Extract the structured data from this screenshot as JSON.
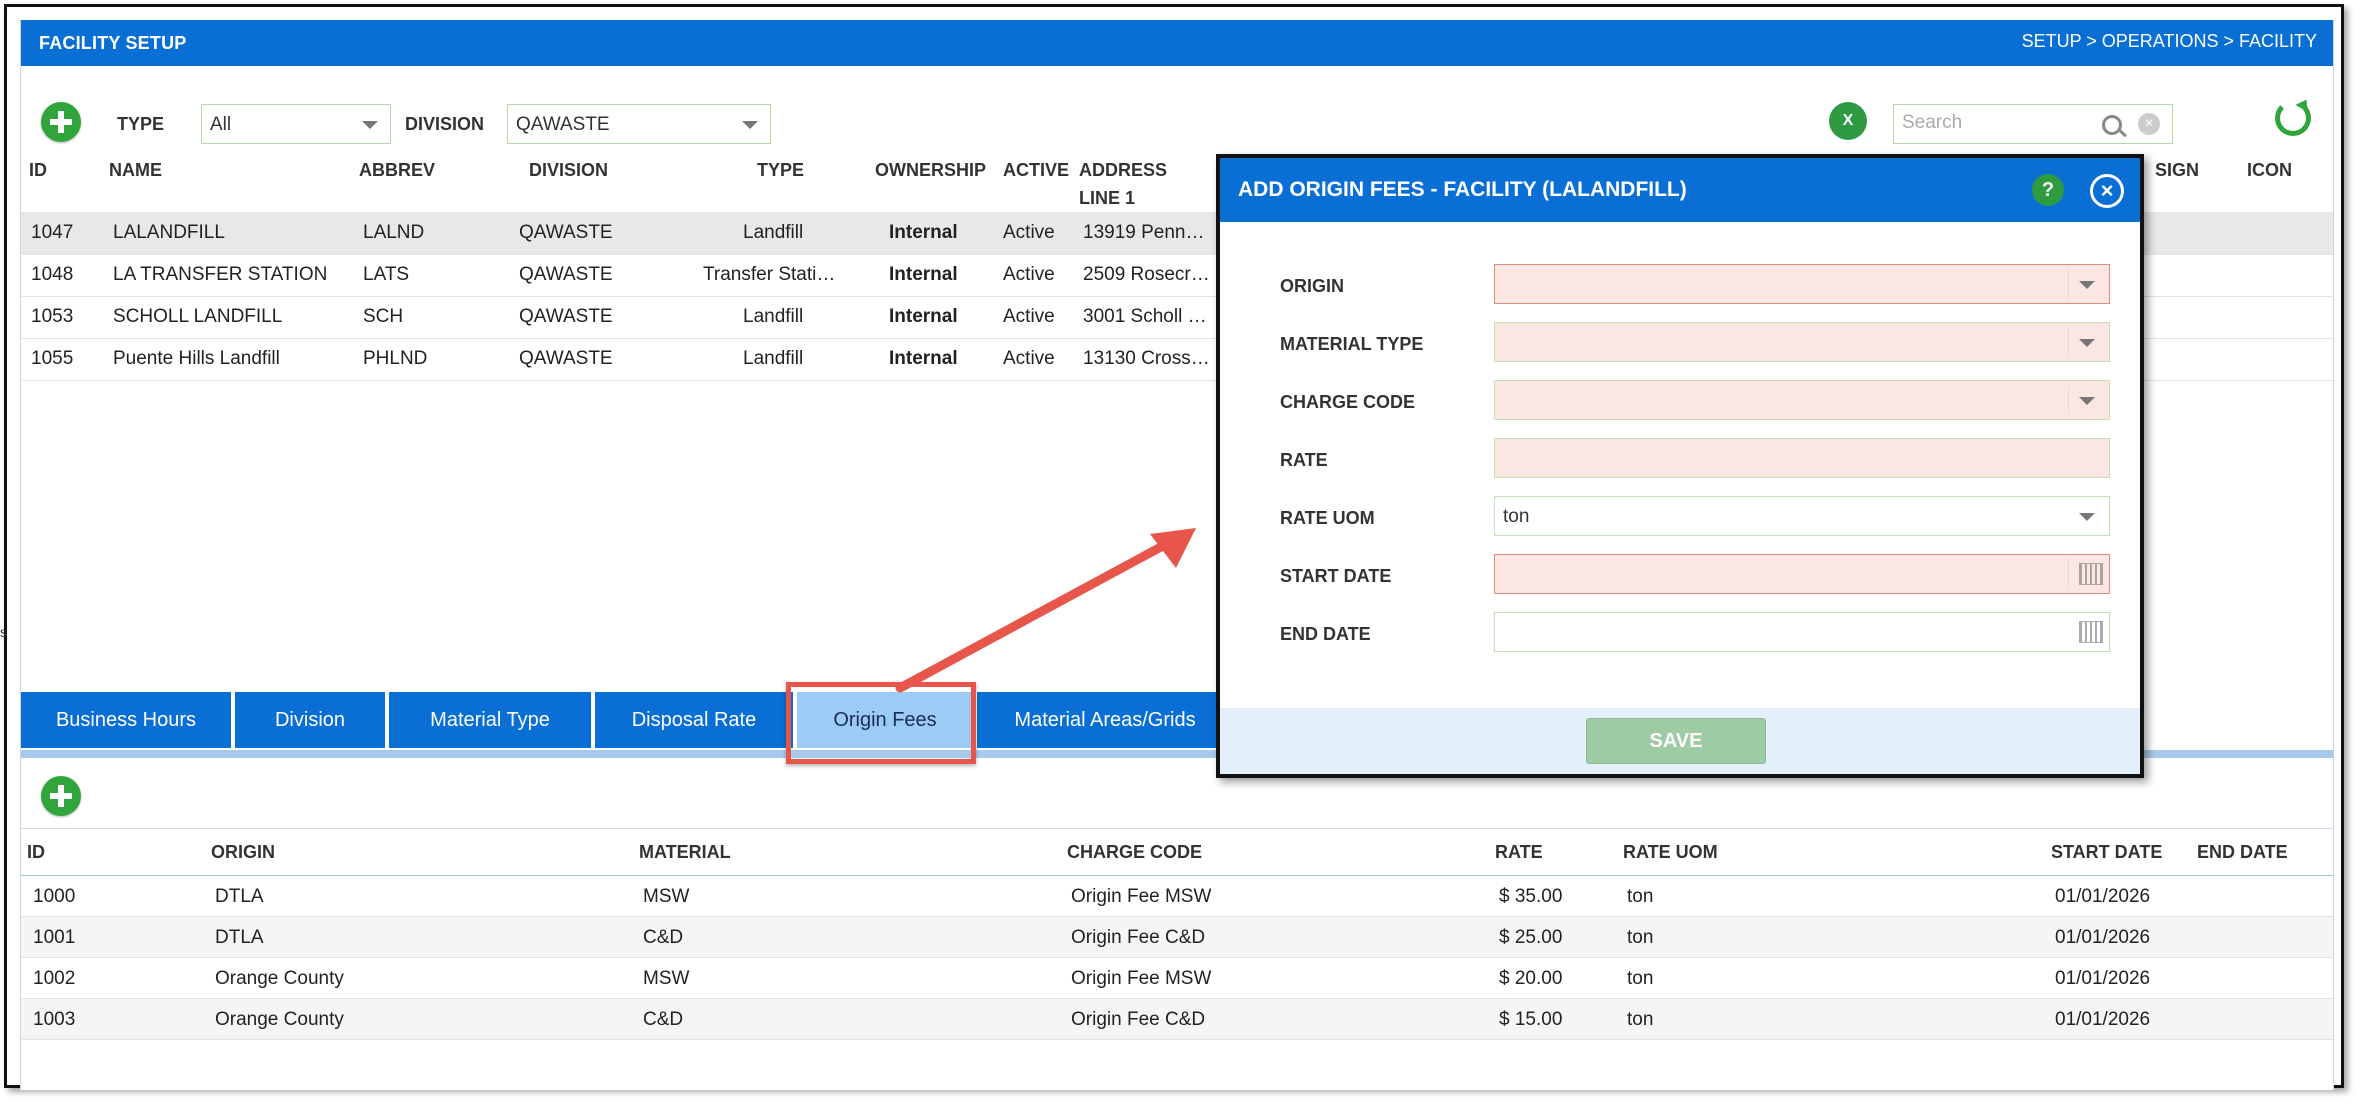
{
  "header": {
    "title": "FACILITY SETUP",
    "breadcrumb": "SETUP > OPERATIONS > FACILITY"
  },
  "filters": {
    "type_label": "TYPE",
    "type_value": "All",
    "division_label": "DIVISION",
    "division_value": "QAWASTE",
    "excel_icon_text": "X",
    "search_placeholder": "Search"
  },
  "facility_grid": {
    "columns": [
      "ID",
      "NAME",
      "ABBREV",
      "DIVISION",
      "TYPE",
      "OWNERSHIP",
      "ACTIVE",
      "ADDRESS LINE 1",
      "SIGN",
      "ICON"
    ],
    "rows": [
      {
        "id": "1047",
        "name": "LALANDFILL",
        "abbrev": "LALND",
        "division": "QAWASTE",
        "type": "Landfill",
        "ownership": "Internal",
        "active": "Active",
        "address": "13919 Penn…"
      },
      {
        "id": "1048",
        "name": "LA TRANSFER STATION",
        "abbrev": "LATS",
        "division": "QAWASTE",
        "type": "Transfer Stati…",
        "ownership": "Internal",
        "active": "Active",
        "address": "2509 Rosecr…"
      },
      {
        "id": "1053",
        "name": "SCHOLL LANDFILL",
        "abbrev": "SCH",
        "division": "QAWASTE",
        "type": "Landfill",
        "ownership": "Internal",
        "active": "Active",
        "address": "3001 Scholl …"
      },
      {
        "id": "1055",
        "name": "Puente Hills Landfill",
        "abbrev": "PHLND",
        "division": "QAWASTE",
        "type": "Landfill",
        "ownership": "Internal",
        "active": "Active",
        "address": "13130 Cross…"
      }
    ]
  },
  "tabs": [
    "Business Hours",
    "Division",
    "Material Type",
    "Disposal Rate",
    "Origin Fees",
    "Material Areas/Grids"
  ],
  "fees_grid": {
    "columns": [
      "ID",
      "ORIGIN",
      "MATERIAL",
      "CHARGE CODE",
      "RATE",
      "RATE UOM",
      "START DATE",
      "END DATE"
    ],
    "rows": [
      {
        "id": "1000",
        "origin": "DTLA",
        "material": "MSW",
        "charge_code": "Origin Fee MSW",
        "rate": "$ 35.00",
        "uom": "ton",
        "start": "01/01/2026",
        "end": ""
      },
      {
        "id": "1001",
        "origin": "DTLA",
        "material": "C&D",
        "charge_code": "Origin Fee C&D",
        "rate": "$ 25.00",
        "uom": "ton",
        "start": "01/01/2026",
        "end": ""
      },
      {
        "id": "1002",
        "origin": "Orange County",
        "material": "MSW",
        "charge_code": "Origin Fee MSW",
        "rate": "$ 20.00",
        "uom": "ton",
        "start": "01/01/2026",
        "end": ""
      },
      {
        "id": "1003",
        "origin": "Orange County",
        "material": "C&D",
        "charge_code": "Origin Fee C&D",
        "rate": "$ 15.00",
        "uom": "ton",
        "start": "01/01/2026",
        "end": ""
      }
    ]
  },
  "modal": {
    "title": "ADD ORIGIN FEES - FACILITY (LALANDFILL)",
    "help": "?",
    "close": "×",
    "fields": {
      "origin": "ORIGIN",
      "material_type": "MATERIAL TYPE",
      "charge_code": "CHARGE CODE",
      "rate": "RATE",
      "rate_uom": "RATE UOM",
      "rate_uom_value": "ton",
      "start_date": "START DATE",
      "end_date": "END DATE"
    },
    "save": "SAVE"
  },
  "edge_mark": "s",
  "colors": {
    "brand_blue": "#0a6fd4",
    "active_tab": "#9ccbf5",
    "green": "#30a53c",
    "highlight_red": "#e8554a",
    "required_field": "#fbe6e2"
  }
}
